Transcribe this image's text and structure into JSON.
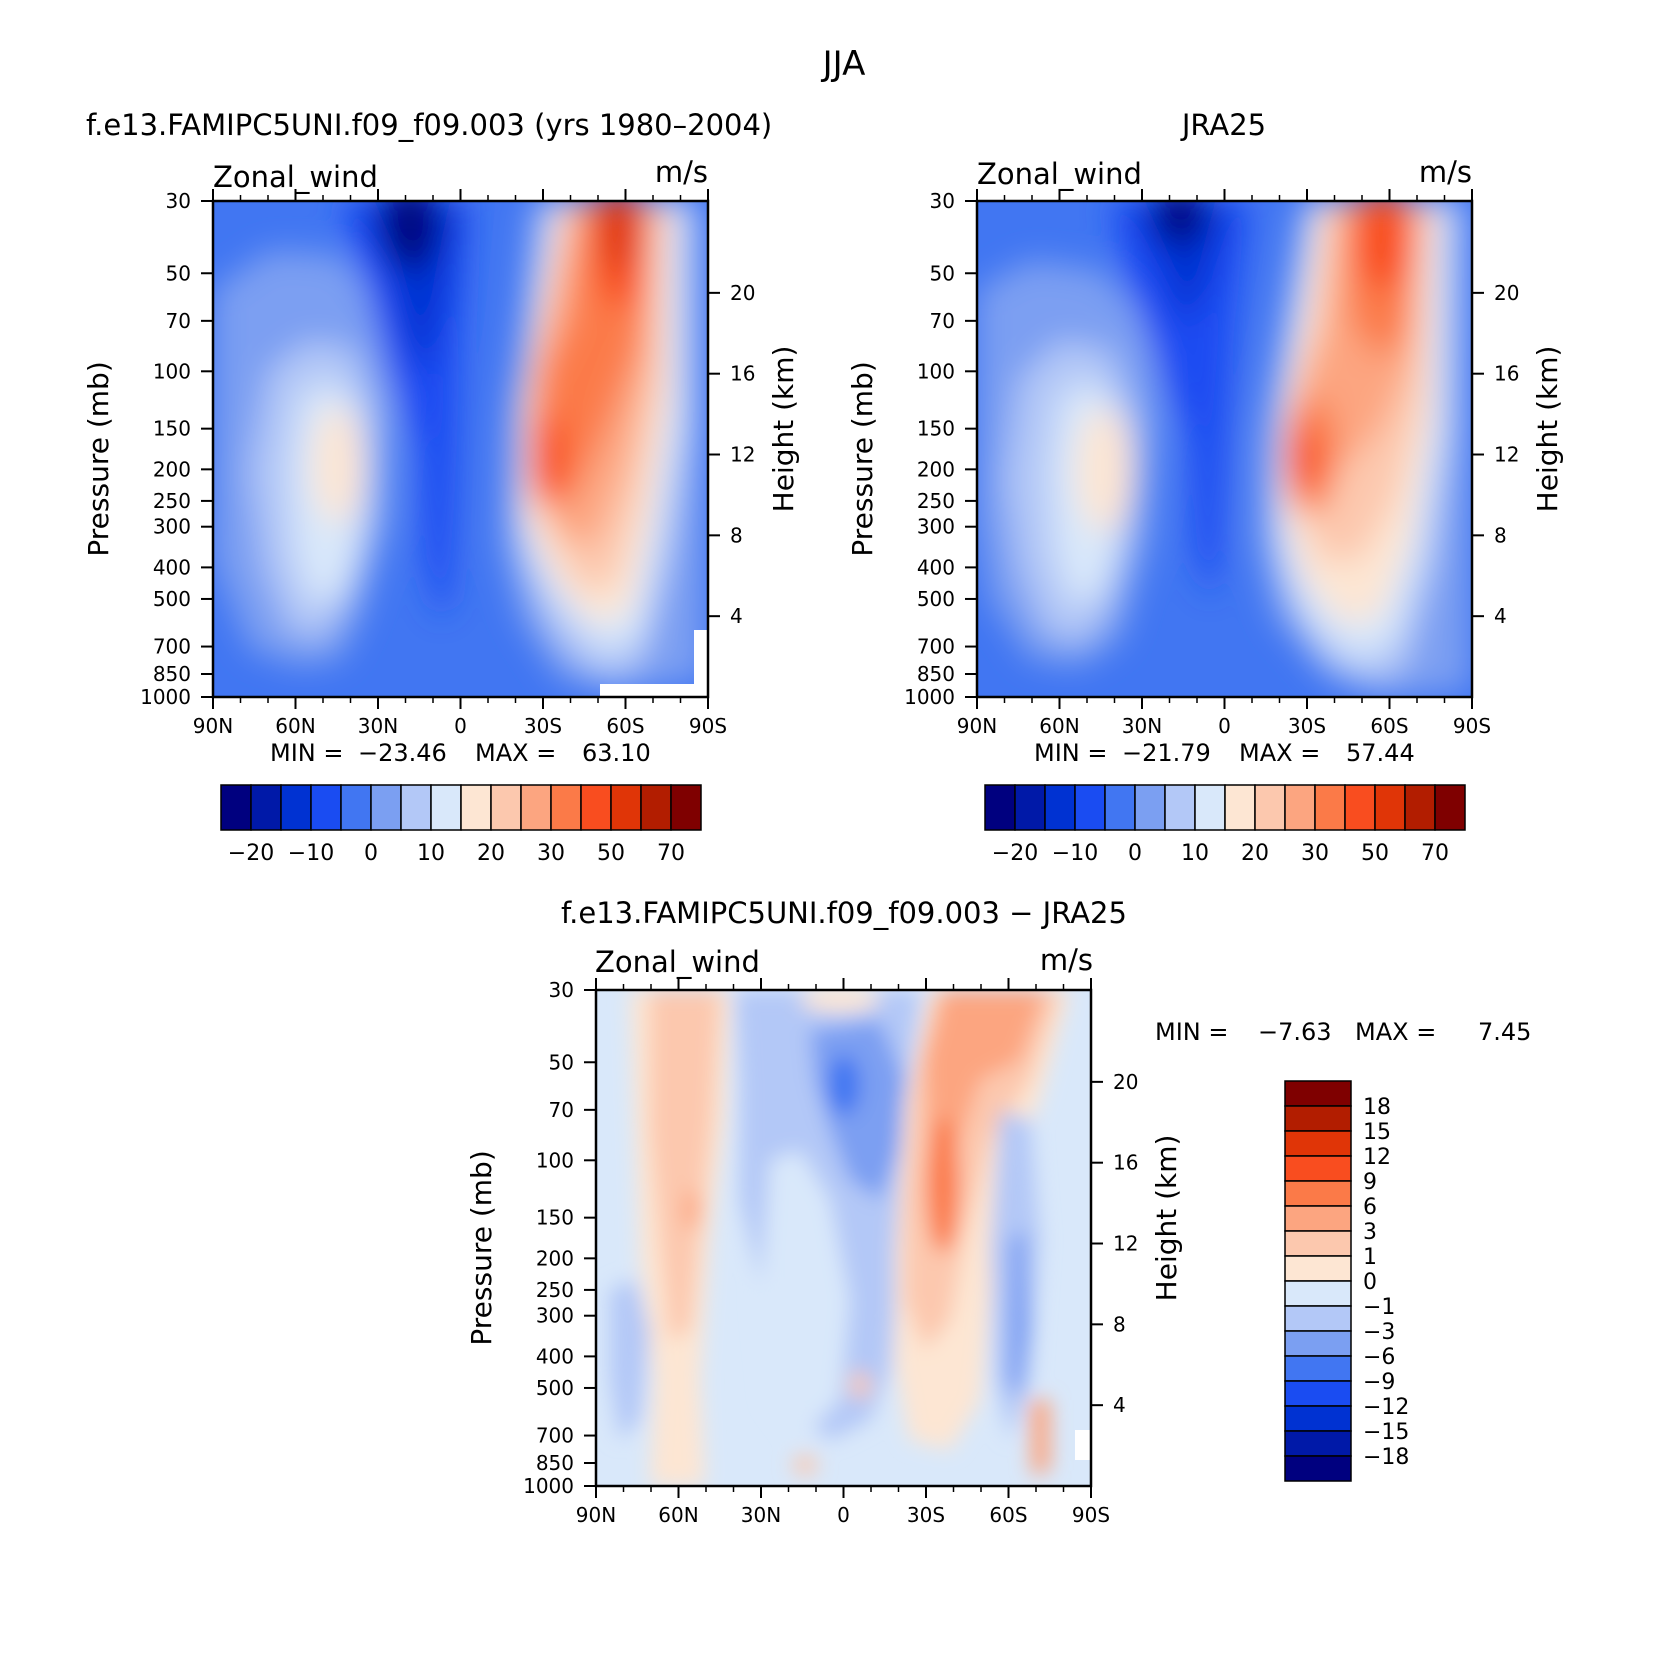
{
  "figure": {
    "title": "JJA",
    "colors": {
      "abs_palette": [
        "#00007f",
        "#0019a8",
        "#0032d2",
        "#1a4cf2",
        "#4176f2",
        "#7b9ff2",
        "#b3c8f7",
        "#d9e8fa",
        "#fde6d3",
        "#fcc8ae",
        "#fca580",
        "#fb7a48",
        "#f94d1f",
        "#e03507",
        "#b21d00",
        "#7f0000"
      ],
      "diff_palette": [
        "#00007f",
        "#0019a8",
        "#0032d2",
        "#1a4cf2",
        "#4176f2",
        "#7b9ff2",
        "#b3c8f7",
        "#d9e8fa",
        "#fde6d3",
        "#fcc8ae",
        "#fca580",
        "#fb7a48",
        "#f94d1f",
        "#e03507",
        "#b21d00",
        "#7f0000"
      ]
    }
  },
  "chart_data": [
    {
      "type": "heatmap",
      "id": "model",
      "title": "f.e13.FAMIPC5UNI.f09_f09.003 (yrs 1980–2004)",
      "variable": "Zonal_wind",
      "units": "m/s",
      "xlabel": "",
      "ylabel": "Pressure (mb)",
      "y2label": "Height (km)",
      "x_ticks": [
        "90N",
        "60N",
        "30N",
        "0",
        "30S",
        "60S",
        "90S"
      ],
      "y_ticks": [
        "30",
        "50",
        "70",
        "100",
        "150",
        "200",
        "250",
        "300",
        "400",
        "500",
        "700",
        "850",
        "1000"
      ],
      "y2_ticks": [
        "20",
        "16",
        "12",
        "8",
        "4"
      ],
      "xlim": [
        90,
        -90
      ],
      "ylim": [
        1000,
        30
      ],
      "min_label": "MIN =",
      "min_value": "−23.46",
      "max_label": "MAX =",
      "max_value": "63.10",
      "colorbar_labels": [
        "−20",
        "−10",
        "0",
        "10",
        "20",
        "30",
        "50",
        "70"
      ]
    },
    {
      "type": "heatmap",
      "id": "obs",
      "title": "JRA25",
      "variable": "Zonal_wind",
      "units": "m/s",
      "xlabel": "",
      "ylabel": "Pressure (mb)",
      "y2label": "Height (km)",
      "x_ticks": [
        "90N",
        "60N",
        "30N",
        "0",
        "30S",
        "60S",
        "90S"
      ],
      "y_ticks": [
        "30",
        "50",
        "70",
        "100",
        "150",
        "200",
        "250",
        "300",
        "400",
        "500",
        "700",
        "850",
        "1000"
      ],
      "y2_ticks": [
        "20",
        "16",
        "12",
        "8",
        "4"
      ],
      "xlim": [
        90,
        -90
      ],
      "ylim": [
        1000,
        30
      ],
      "min_label": "MIN =",
      "min_value": "−21.79",
      "max_label": "MAX =",
      "max_value": "57.44",
      "colorbar_labels": [
        "−20",
        "−10",
        "0",
        "10",
        "20",
        "30",
        "50",
        "70"
      ]
    },
    {
      "type": "heatmap",
      "id": "diff",
      "title": "f.e13.FAMIPC5UNI.f09_f09.003 − JRA25",
      "variable": "Zonal_wind",
      "units": "m/s",
      "xlabel": "",
      "ylabel": "Pressure (mb)",
      "y2label": "Height (km)",
      "x_ticks": [
        "90N",
        "60N",
        "30N",
        "0",
        "30S",
        "60S",
        "90S"
      ],
      "y_ticks": [
        "30",
        "50",
        "70",
        "100",
        "150",
        "200",
        "250",
        "300",
        "400",
        "500",
        "700",
        "850",
        "1000"
      ],
      "y2_ticks": [
        "20",
        "16",
        "12",
        "8",
        "4"
      ],
      "xlim": [
        90,
        -90
      ],
      "ylim": [
        1000,
        30
      ],
      "min_label": "MIN =",
      "min_value": "−7.63",
      "max_label": "MAX =",
      "max_value": "7.45",
      "colorbar_labels": [
        "18",
        "15",
        "12",
        "9",
        "6",
        "3",
        "1",
        "0",
        "−1",
        "−3",
        "−6",
        "−9",
        "−12",
        "−15",
        "−18"
      ]
    }
  ]
}
